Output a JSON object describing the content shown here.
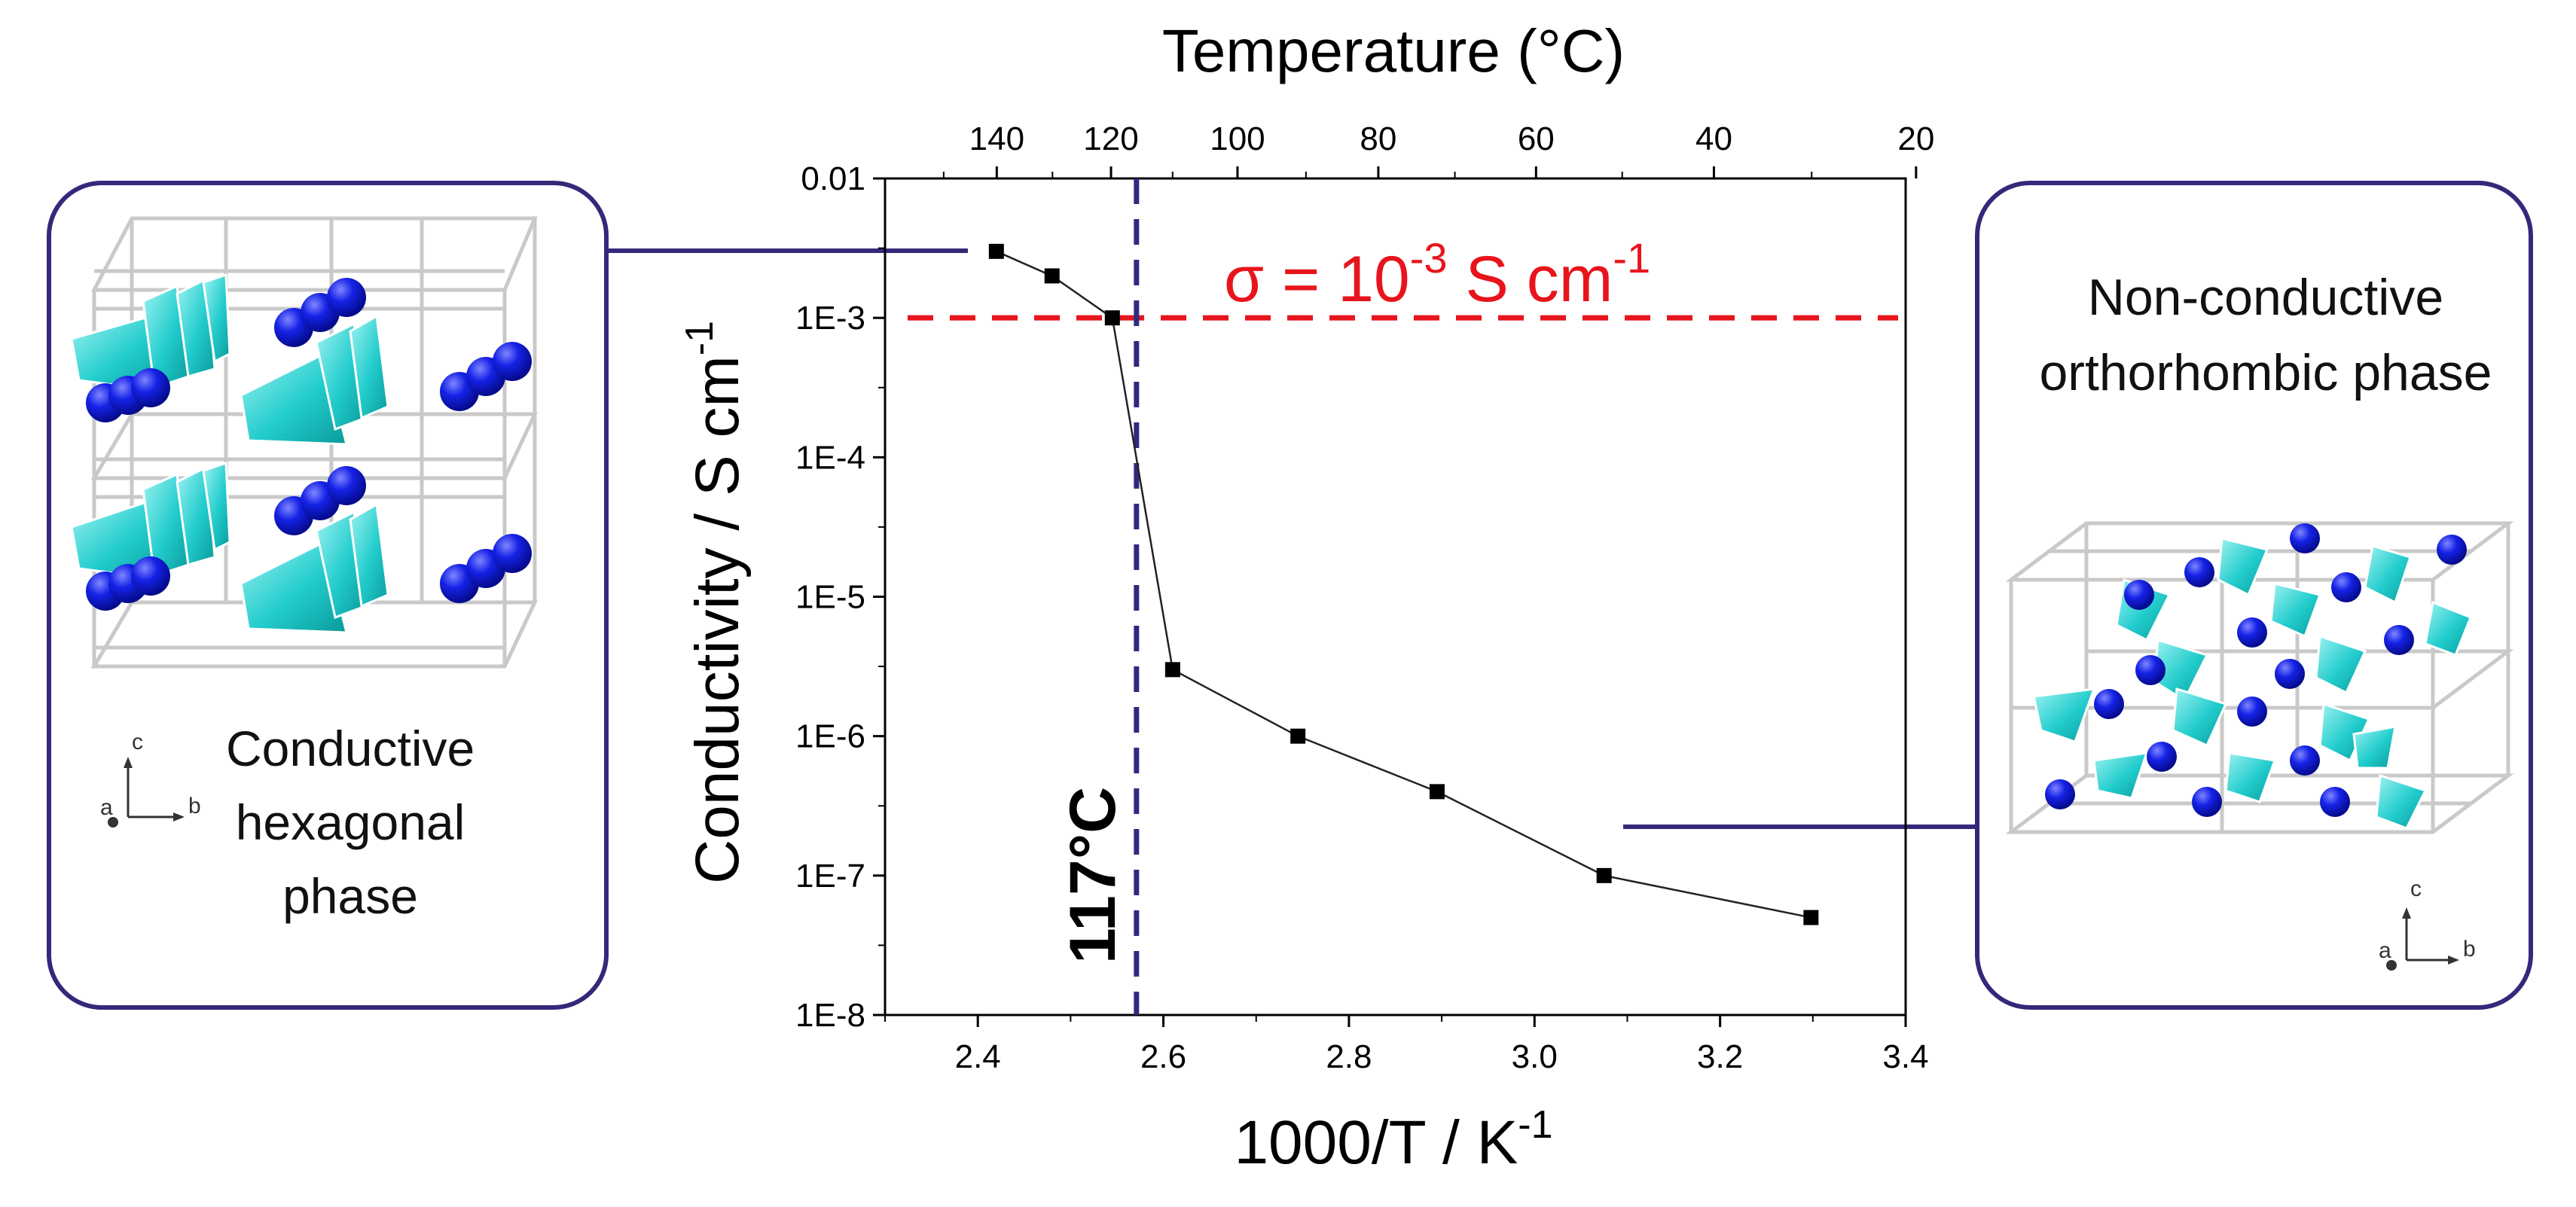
{
  "chart_data": {
    "type": "scatter",
    "title": "",
    "xlabel": "1000/T / K",
    "xlabel_sup": "-1",
    "ylabel": "Conductivity / S cm",
    "ylabel_sup": "-1",
    "top_axis_label": "Temperature (°C)",
    "xlim": [
      2.3,
      3.4
    ],
    "ylim": [
      1e-08,
      0.01
    ],
    "y_scale": "log",
    "x_ticks": [
      "2.4",
      "2.6",
      "2.8",
      "3.0",
      "3.2",
      "3.4"
    ],
    "x_tick_values": [
      2.4,
      2.6,
      2.8,
      3.0,
      3.2,
      3.4
    ],
    "y_ticks": [
      "0.01",
      "1E-3",
      "1E-4",
      "1E-5",
      "1E-6",
      "1E-7",
      "1E-8"
    ],
    "y_tick_values": [
      0.01,
      0.001,
      0.0001,
      1e-05,
      1e-06,
      1e-07,
      1e-08
    ],
    "top_ticks": [
      "140",
      "120",
      "100",
      "80",
      "60",
      "40",
      "20"
    ],
    "top_tick_values": [
      140,
      120,
      100,
      80,
      60,
      40,
      20
    ],
    "series": [
      {
        "name": "Conductivity",
        "color": "#000000",
        "x": [
          2.42,
          2.48,
          2.545,
          2.61,
          2.745,
          2.895,
          3.075,
          3.298
        ],
        "y": [
          0.003,
          0.002,
          0.001,
          3e-06,
          1e-06,
          4e-07,
          1e-07,
          5e-08
        ]
      }
    ],
    "annotations": {
      "threshold": {
        "value": 0.001,
        "color": "#e8141c",
        "text_prefix": "σ = 10",
        "text_exp": "-3",
        "text_mid": " S cm",
        "text_exp2": "-1"
      },
      "transition": {
        "x": 2.571,
        "color": "#2f2a80",
        "label": "117°C"
      }
    }
  },
  "left_panel": {
    "label_lines": [
      "Conductive",
      "hexagonal",
      "phase"
    ],
    "axis_labels": [
      "c",
      "a",
      "b"
    ],
    "border_color": "#35287a"
  },
  "right_panel": {
    "label_lines": [
      "Non-conductive",
      "orthorhombic phase"
    ],
    "axis_labels": [
      "c",
      "a",
      "b"
    ],
    "border_color": "#35287a"
  },
  "colors": {
    "tetrahedra": "#1cc9c9",
    "spheres": "#0a14d8",
    "connector": "#35287a"
  }
}
